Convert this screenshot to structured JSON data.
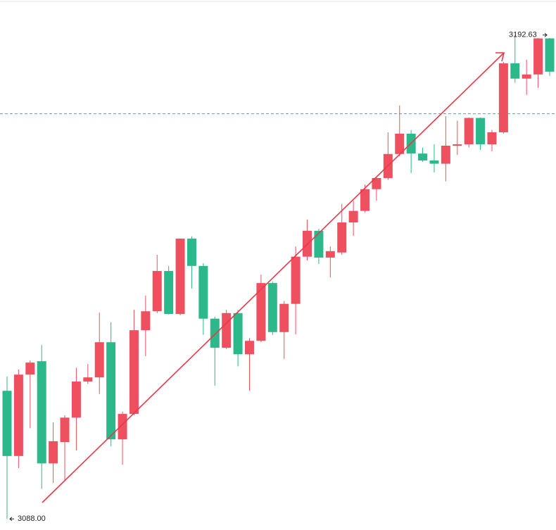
{
  "chart_data": {
    "type": "candlestick",
    "up_color": "#ef5060",
    "down_color": "#2bb88a",
    "price_line_color": "#3cb39a",
    "ylim": [
      3085.6,
      3200.2
    ],
    "price_line": 3175.6,
    "max_label": {
      "value": 3192.63,
      "label": "3192.63"
    },
    "min_label": {
      "value": 3088,
      "label": "3088.00"
    },
    "open": [
      3115.7,
      3101.6,
      3119.2,
      3122.1,
      3100.0,
      3104.6,
      3109.9,
      3117.7,
      3118.6,
      3126.2,
      3105.2,
      3110.7,
      3128.8,
      3132.9,
      3141.6,
      3132.3,
      3148.6,
      3142.7,
      3131.3,
      3125.0,
      3132.5,
      3123.6,
      3126.5,
      3139.0,
      3128.4,
      3134.5,
      3144.7,
      3150.3,
      3144.5,
      3145.6,
      3152.1,
      3154.6,
      3159.3,
      3161.7,
      3166.9,
      3171.3,
      3167.0,
      3165.5,
      3164.8,
      3168.7,
      3169.0,
      3174.7,
      3169.0,
      3171.6,
      3186.5,
      3183.2,
      3184.1,
      3191.9
    ],
    "high": [
      3118.8,
      3120.3,
      3122.3,
      3125.6,
      3108.9,
      3110.4,
      3120.7,
      3121.5,
      3132.6,
      3130.5,
      3111.2,
      3133.2,
      3136.3,
      3145.1,
      3142.7,
      3148.6,
      3149.1,
      3143.3,
      3131.7,
      3133.2,
      3133.2,
      3127.1,
      3140.8,
      3139.3,
      3135.1,
      3146.9,
      3152.7,
      3150.7,
      3146.9,
      3156.1,
      3156.8,
      3160.3,
      3161.9,
      3171.6,
      3177.4,
      3172.1,
      3168.3,
      3169.0,
      3175.1,
      3174.1,
      3174.8,
      3174.8,
      3172.1,
      3186.8,
      3192.63,
      3187.3,
      3192.0,
      3192.0
    ],
    "low": [
      3088.0,
      3099.0,
      3107.6,
      3094.5,
      3095.8,
      3096.4,
      3102.8,
      3117.2,
      3115.0,
      3103.7,
      3099.7,
      3110.4,
      3123.2,
      3132.5,
      3132.2,
      3132.0,
      3137.8,
      3127.8,
      3116.8,
      3124.7,
      3121.0,
      3115.7,
      3126.2,
      3127.8,
      3122.6,
      3127.9,
      3143.9,
      3143.1,
      3140.2,
      3145.1,
      3149.2,
      3154.3,
      3156.8,
      3161.3,
      3166.4,
      3162.8,
      3165.2,
      3162.9,
      3161.0,
      3166.7,
      3168.3,
      3167.8,
      3167.5,
      3171.3,
      3182.3,
      3179.7,
      3181.2,
      3183.8
    ],
    "close": [
      3101.6,
      3119.2,
      3121.8,
      3100.0,
      3104.8,
      3109.9,
      3117.7,
      3118.6,
      3126.2,
      3105.2,
      3110.7,
      3128.8,
      3132.9,
      3141.6,
      3132.3,
      3148.6,
      3142.7,
      3131.3,
      3125.0,
      3132.5,
      3123.6,
      3126.5,
      3139.0,
      3128.4,
      3134.5,
      3144.7,
      3150.3,
      3144.5,
      3145.9,
      3152.1,
      3154.6,
      3159.3,
      3161.7,
      3166.9,
      3171.3,
      3167.0,
      3165.5,
      3164.8,
      3168.7,
      3169.0,
      3174.7,
      3169.0,
      3171.6,
      3186.5,
      3183.2,
      3184.1,
      3191.9,
      3184.7
    ]
  }
}
